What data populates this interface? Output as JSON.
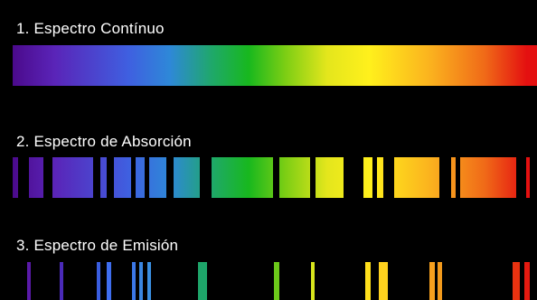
{
  "titles": {
    "continuous": "1. Espectro Contínuo",
    "absorption": "2. Espectro de Absorción",
    "emission": "3. Espectro de Emisión"
  },
  "colors": {
    "background": "#000000",
    "title_text": "#ffffff"
  }
}
